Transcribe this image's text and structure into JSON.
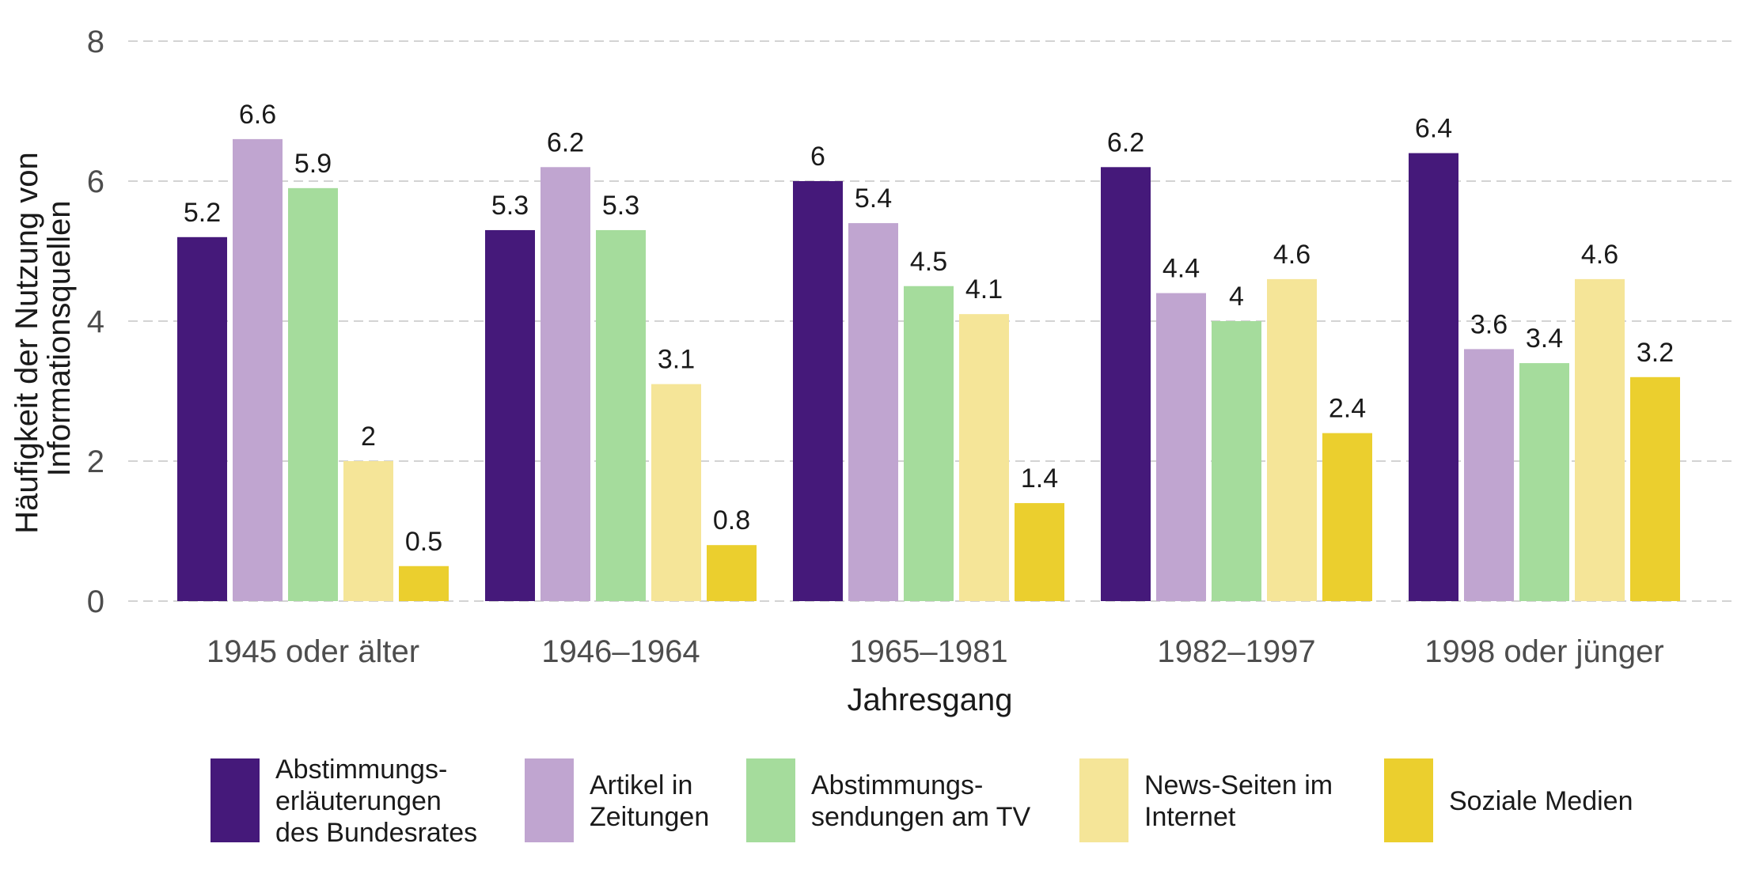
{
  "chart_data": {
    "type": "bar",
    "title": "",
    "xlabel": "Jahresgang",
    "ylabel": [
      "Häufigkeit der Nutzung von",
      "Informationsquellen"
    ],
    "ylim": [
      0,
      8
    ],
    "yticks": [
      "0",
      "2",
      "4",
      "6",
      "8"
    ],
    "grid": true,
    "legend_position": "bottom",
    "categories": [
      "1945 oder älter",
      "1946–1964",
      "1965–1981",
      "1982–1997",
      "1998 oder jünger"
    ],
    "series": [
      {
        "name": "Abstimmungs- erläuterungen des Bundesrates",
        "legend_lines": [
          "Abstimmungs-",
          "erläuterungen",
          "des Bundesrates"
        ],
        "color": "#45197a",
        "values": [
          5.2,
          5.3,
          6,
          6.2,
          6.4
        ]
      },
      {
        "name": "Artikel in Zeitungen",
        "legend_lines": [
          "Artikel in",
          "Zeitungen"
        ],
        "color": "#c0a5d0",
        "values": [
          6.6,
          6.2,
          5.4,
          4.4,
          3.6
        ]
      },
      {
        "name": "Abstimmungs- sendungen am TV",
        "legend_lines": [
          "Abstimmungs-",
          "sendungen am TV"
        ],
        "color": "#a5dc9c",
        "values": [
          5.9,
          5.3,
          4.5,
          4,
          3.4
        ]
      },
      {
        "name": "News-Seiten im Internet",
        "legend_lines": [
          "News-Seiten im",
          "Internet"
        ],
        "color": "#f5e598",
        "values": [
          2,
          3.1,
          4.1,
          4.6,
          4.6
        ]
      },
      {
        "name": "Soziale Medien",
        "legend_lines": [
          "Soziale Medien"
        ],
        "color": "#ebcf2e",
        "values": [
          0.5,
          0.8,
          1.4,
          2.4,
          3.2
        ]
      }
    ]
  }
}
